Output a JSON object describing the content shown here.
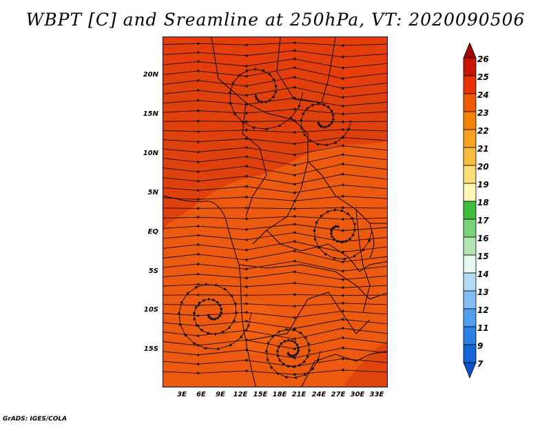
{
  "title": "WBPT [C] and Sreamline at 250hPa, VT: 2020090506",
  "credit": "GrADS: IGES/COLA",
  "map": {
    "lat_labels": [
      "20N",
      "15N",
      "10N",
      "5N",
      "EQ",
      "5S",
      "10S",
      "15S"
    ],
    "lon_labels": [
      "3E",
      "6E",
      "9E",
      "12E",
      "15E",
      "18E",
      "21E",
      "24E",
      "27E",
      "30E",
      "33E"
    ],
    "field": "WBPT",
    "units": "C",
    "level": "250hPa",
    "valid_time": "2020090506"
  },
  "colorbar": {
    "levels": [
      "26",
      "25",
      "24",
      "23",
      "22",
      "21",
      "20",
      "19",
      "18",
      "17",
      "16",
      "15",
      "14",
      "13",
      "12",
      "11",
      "9",
      "7"
    ],
    "colors": [
      "#a50000",
      "#c81400",
      "#e63200",
      "#f05a00",
      "#f58200",
      "#faa01e",
      "#fcbe3c",
      "#fedc78",
      "#fff5b4",
      "#3cbe3c",
      "#78d278",
      "#b4e6b4",
      "#e6f8f0",
      "#b4dcf8",
      "#82bef5",
      "#50a0f0",
      "#2882e6",
      "#1464dc",
      "#0a50c8"
    ]
  }
}
